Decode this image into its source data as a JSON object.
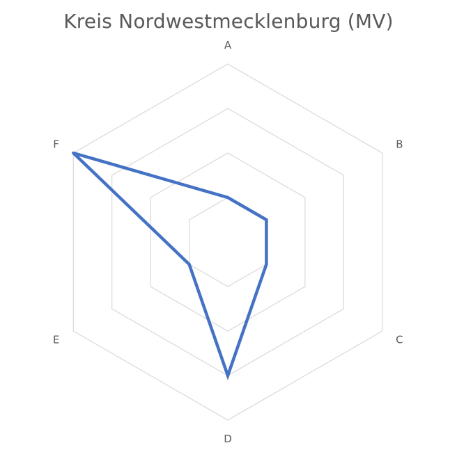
{
  "chart_data": {
    "type": "radar",
    "title": "Kreis Nordwestmecklenburg (MV)",
    "categories": [
      "A",
      "B",
      "C",
      "D",
      "E",
      "F"
    ],
    "series": [
      {
        "values": [
          1,
          1,
          1,
          3,
          1,
          4
        ],
        "color": "#4472c4"
      }
    ],
    "rlim": [
      0,
      4
    ],
    "rings": [
      1,
      2,
      3,
      4
    ],
    "grid": true,
    "legend": "none",
    "grid_color": "#d9d9d9"
  }
}
